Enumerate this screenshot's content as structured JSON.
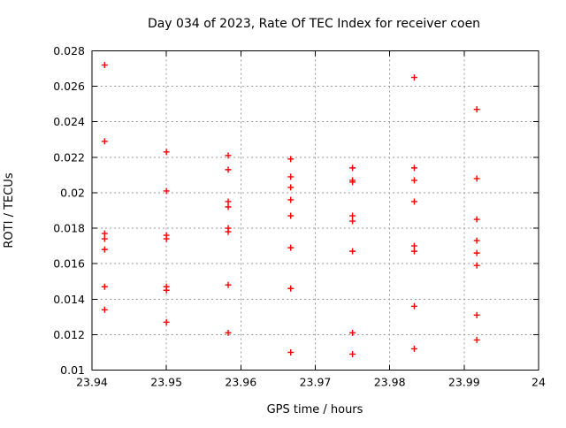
{
  "chart_data": {
    "type": "scatter",
    "title": "Day 034 of 2023, Rate Of TEC Index for receiver coen",
    "xlabel": "GPS time / hours",
    "ylabel": "ROTI / TECUs",
    "xlim": [
      23.94,
      24
    ],
    "ylim": [
      0.01,
      0.028
    ],
    "grid": true,
    "legend": "none",
    "marker": "plus",
    "colors": {
      "marker": "#ff0000",
      "grid": "#9a9a9a",
      "axis": "#000000",
      "background": "#ffffff",
      "text": "#000000"
    },
    "x_ticks": [
      {
        "v": 23.94,
        "label": "23.94"
      },
      {
        "v": 23.95,
        "label": "23.95"
      },
      {
        "v": 23.96,
        "label": "23.96"
      },
      {
        "v": 23.97,
        "label": "23.97"
      },
      {
        "v": 23.98,
        "label": "23.98"
      },
      {
        "v": 23.99,
        "label": "23.99"
      },
      {
        "v": 24,
        "label": "24"
      }
    ],
    "y_ticks": [
      {
        "v": 0.01,
        "label": "0.01"
      },
      {
        "v": 0.012,
        "label": "0.012"
      },
      {
        "v": 0.014,
        "label": "0.014"
      },
      {
        "v": 0.016,
        "label": "0.016"
      },
      {
        "v": 0.018,
        "label": "0.018"
      },
      {
        "v": 0.02,
        "label": "0.02"
      },
      {
        "v": 0.022,
        "label": "0.022"
      },
      {
        "v": 0.024,
        "label": "0.024"
      },
      {
        "v": 0.026,
        "label": "0.026"
      },
      {
        "v": 0.028,
        "label": "0.028"
      }
    ],
    "series": [
      {
        "name": "ROTI",
        "points": [
          [
            23.9417,
            0.0272
          ],
          [
            23.9417,
            0.0229
          ],
          [
            23.9417,
            0.0177
          ],
          [
            23.9417,
            0.0174
          ],
          [
            23.9417,
            0.0168
          ],
          [
            23.9417,
            0.0147
          ],
          [
            23.9417,
            0.0134
          ],
          [
            23.95,
            0.0223
          ],
          [
            23.95,
            0.0201
          ],
          [
            23.95,
            0.0176
          ],
          [
            23.95,
            0.0174
          ],
          [
            23.95,
            0.0147
          ],
          [
            23.95,
            0.0145
          ],
          [
            23.95,
            0.0127
          ],
          [
            23.9583,
            0.0221
          ],
          [
            23.9583,
            0.0213
          ],
          [
            23.9583,
            0.0195
          ],
          [
            23.9583,
            0.0192
          ],
          [
            23.9583,
            0.018
          ],
          [
            23.9583,
            0.0178
          ],
          [
            23.9583,
            0.0148
          ],
          [
            23.9583,
            0.0121
          ],
          [
            23.9667,
            0.0219
          ],
          [
            23.9667,
            0.0209
          ],
          [
            23.9667,
            0.0203
          ],
          [
            23.9667,
            0.0196
          ],
          [
            23.9667,
            0.0187
          ],
          [
            23.9667,
            0.0169
          ],
          [
            23.9667,
            0.0146
          ],
          [
            23.9667,
            0.011
          ],
          [
            23.975,
            0.0214
          ],
          [
            23.975,
            0.0207
          ],
          [
            23.975,
            0.0206
          ],
          [
            23.975,
            0.0187
          ],
          [
            23.975,
            0.0184
          ],
          [
            23.975,
            0.0167
          ],
          [
            23.975,
            0.0121
          ],
          [
            23.975,
            0.0109
          ],
          [
            23.9833,
            0.0265
          ],
          [
            23.9833,
            0.0214
          ],
          [
            23.9833,
            0.0207
          ],
          [
            23.9833,
            0.0195
          ],
          [
            23.9833,
            0.017
          ],
          [
            23.9833,
            0.0167
          ],
          [
            23.9833,
            0.0136
          ],
          [
            23.9833,
            0.0112
          ],
          [
            23.9917,
            0.0247
          ],
          [
            23.9917,
            0.0208
          ],
          [
            23.9917,
            0.0185
          ],
          [
            23.9917,
            0.0173
          ],
          [
            23.9917,
            0.0166
          ],
          [
            23.9917,
            0.0159
          ],
          [
            23.9917,
            0.0131
          ],
          [
            23.9917,
            0.0117
          ]
        ]
      }
    ]
  }
}
